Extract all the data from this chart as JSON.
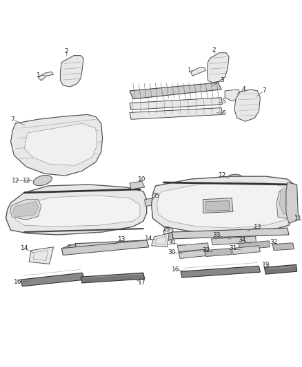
{
  "background_color": "#ffffff",
  "figsize": [
    4.38,
    5.33
  ],
  "dpi": 100,
  "line_color": "#555555",
  "light_fill": "#e8e8e8",
  "mid_fill": "#d0d0d0",
  "dark_fill": "#888888",
  "label_color": "#222222",
  "label_fontsize": 6.5,
  "leader_lw": 0.5,
  "part_lw": 0.7
}
